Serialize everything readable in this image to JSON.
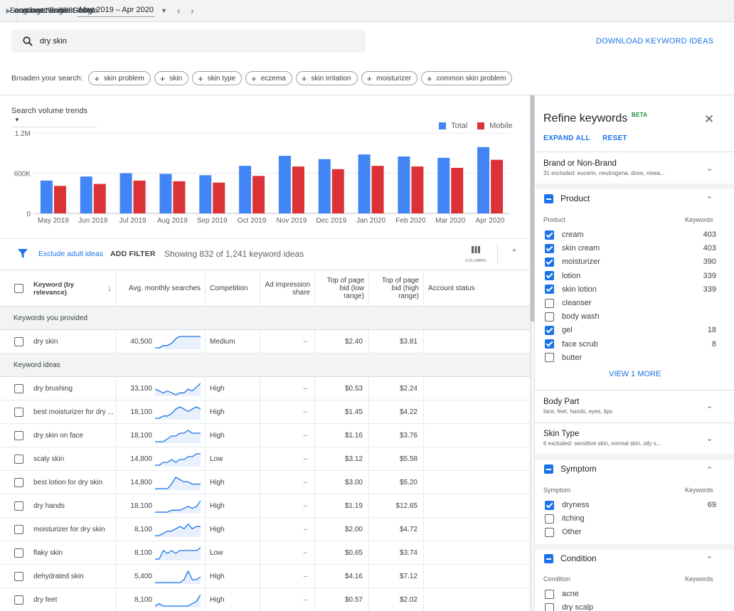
{
  "topbar": {
    "location": "Locations: United States",
    "language": "Language: English",
    "networks": "Search networks: Google",
    "range_label": "Last 12 months",
    "range_value": "May 2019 – Apr 2020"
  },
  "search": {
    "query": "dry skin",
    "download": "DOWNLOAD KEYWORD IDEAS"
  },
  "broaden": {
    "label": "Broaden your search:",
    "chips": [
      "skin problem",
      "skin",
      "skin type",
      "eczema",
      "skin irritation",
      "moisturizer",
      "common skin problem"
    ]
  },
  "trend": {
    "dropdown": "Search volume trends"
  },
  "chart_data": {
    "type": "bar",
    "categories": [
      "May 2019",
      "Jun 2019",
      "Jul 2019",
      "Aug 2019",
      "Sep 2019",
      "Oct 2019",
      "Nov 2019",
      "Dec 2019",
      "Jan 2020",
      "Feb 2020",
      "Mar 2020",
      "Apr 2020"
    ],
    "series": [
      {
        "name": "Total",
        "color": "#4285f4",
        "values": [
          490000,
          550000,
          600000,
          590000,
          570000,
          710000,
          860000,
          810000,
          880000,
          850000,
          830000,
          990000
        ]
      },
      {
        "name": "Mobile",
        "color": "#db3236",
        "values": [
          410000,
          440000,
          490000,
          480000,
          460000,
          560000,
          700000,
          660000,
          710000,
          700000,
          680000,
          800000
        ]
      }
    ],
    "yticks": [
      {
        "value": 0,
        "label": "0"
      },
      {
        "value": 600000,
        "label": "600K"
      },
      {
        "value": 1200000,
        "label": "1.2M"
      }
    ],
    "ylim": [
      0,
      1200000
    ],
    "legend": "top-right",
    "grid": true
  },
  "filterbar": {
    "exclude": "Exclude adult ideas",
    "add_filter": "ADD FILTER",
    "showing": "Showing 832 of 1,241 keyword ideas",
    "columns": "COLUMNS"
  },
  "table": {
    "headers": {
      "keyword": "Keyword (by relevance)",
      "avg": "Avg. monthly searches",
      "competition": "Competition",
      "adimp": "Ad impression share",
      "low": "Top of page bid (low range)",
      "high": "Top of page bid (high range)",
      "account": "Account status"
    },
    "section_provided": "Keywords you provided",
    "section_ideas": "Keyword ideas",
    "provided": [
      {
        "keyword": "dry skin",
        "avg": "40,500",
        "trend": [
          2,
          2,
          3,
          3,
          4,
          6,
          7,
          7,
          7,
          7,
          7,
          7
        ],
        "competition": "Medium",
        "adimp": "–",
        "low": "$2.40",
        "high": "$3.81"
      }
    ],
    "ideas": [
      {
        "keyword": "dry brushing",
        "avg": "33,100",
        "trend": [
          5,
          4,
          3,
          4,
          3,
          2,
          3,
          3,
          5,
          4,
          6,
          8
        ],
        "competition": "High",
        "adimp": "–",
        "low": "$0.53",
        "high": "$2.24"
      },
      {
        "keyword": "best moisturizer for dry ...",
        "avg": "18,100",
        "trend": [
          2,
          2,
          3,
          3,
          4,
          6,
          7,
          6,
          5,
          6,
          7,
          6
        ],
        "competition": "High",
        "adimp": "–",
        "low": "$1.45",
        "high": "$4.22"
      },
      {
        "keyword": "dry skin on face",
        "avg": "18,100",
        "trend": [
          2,
          2,
          2,
          3,
          4,
          4,
          5,
          5,
          6,
          5,
          5,
          5
        ],
        "competition": "High",
        "adimp": "–",
        "low": "$1.16",
        "high": "$3.76"
      },
      {
        "keyword": "scaly skin",
        "avg": "14,800",
        "trend": [
          2,
          2,
          3,
          3,
          4,
          3,
          4,
          4,
          5,
          5,
          6,
          6
        ],
        "competition": "Low",
        "adimp": "–",
        "low": "$3.12",
        "high": "$5.58"
      },
      {
        "keyword": "best lotion for dry skin",
        "avg": "14,800",
        "trend": [
          2,
          2,
          2,
          2,
          4,
          7,
          6,
          5,
          5,
          4,
          4,
          4
        ],
        "competition": "High",
        "adimp": "–",
        "low": "$3.00",
        "high": "$5.20"
      },
      {
        "keyword": "dry hands",
        "avg": "18,100",
        "trend": [
          2,
          2,
          2,
          2,
          3,
          3,
          3,
          4,
          5,
          4,
          5,
          8
        ],
        "competition": "High",
        "adimp": "–",
        "low": "$1.19",
        "high": "$12.65"
      },
      {
        "keyword": "moisturizer for dry skin",
        "avg": "8,100",
        "trend": [
          2,
          2,
          3,
          4,
          4,
          5,
          6,
          5,
          7,
          5,
          6,
          6
        ],
        "competition": "High",
        "adimp": "–",
        "low": "$2.00",
        "high": "$4.72"
      },
      {
        "keyword": "flaky skin",
        "avg": "8,100",
        "trend": [
          2,
          2,
          5,
          4,
          5,
          4,
          5,
          5,
          5,
          5,
          5,
          6
        ],
        "competition": "Low",
        "adimp": "–",
        "low": "$0.65",
        "high": "$3.74"
      },
      {
        "keyword": "dehydrated skin",
        "avg": "5,400",
        "trend": [
          3,
          3,
          3,
          3,
          3,
          3,
          3,
          4,
          7,
          4,
          4,
          5
        ],
        "competition": "High",
        "adimp": "–",
        "low": "$4.16",
        "high": "$7.12"
      },
      {
        "keyword": "dry feet",
        "avg": "8,100",
        "trend": [
          2,
          3,
          2,
          2,
          2,
          2,
          2,
          2,
          2,
          3,
          4,
          7
        ],
        "competition": "High",
        "adimp": "–",
        "low": "$0.57",
        "high": "$2.02"
      }
    ]
  },
  "refine": {
    "title": "Refine keywords",
    "beta": "BETA",
    "expand_all": "EXPAND ALL",
    "reset": "RESET",
    "brand": {
      "title": "Brand or Non-Brand",
      "sub": "31 excluded: eucerin, neutrogena, dove, nivea..."
    },
    "product": {
      "title": "Product",
      "col1": "Product",
      "col2": "Keywords",
      "items": [
        {
          "label": "cream",
          "checked": true,
          "count": "403"
        },
        {
          "label": "skin cream",
          "checked": true,
          "count": "403"
        },
        {
          "label": "moisturizer",
          "checked": true,
          "count": "390"
        },
        {
          "label": "lotion",
          "checked": true,
          "count": "339"
        },
        {
          "label": "skin lotion",
          "checked": true,
          "count": "339"
        },
        {
          "label": "cleanser",
          "checked": false,
          "count": ""
        },
        {
          "label": "body wash",
          "checked": false,
          "count": ""
        },
        {
          "label": "gel",
          "checked": true,
          "count": "18"
        },
        {
          "label": "face scrub",
          "checked": true,
          "count": "8"
        },
        {
          "label": "butter",
          "checked": false,
          "count": ""
        }
      ],
      "view_more": "VIEW 1 MORE"
    },
    "body_part": {
      "title": "Body Part",
      "sub": "face, feet, hands, eyes, lips"
    },
    "skin_type": {
      "title": "Skin Type",
      "sub": "6 excluded: sensitive skin, normal skin, oily s..."
    },
    "symptom": {
      "title": "Symptom",
      "col1": "Symptom",
      "col2": "Keywords",
      "items": [
        {
          "label": "dryness",
          "checked": true,
          "count": "69"
        },
        {
          "label": "itching",
          "checked": false,
          "count": ""
        },
        {
          "label": "Other",
          "checked": false,
          "count": ""
        }
      ]
    },
    "condition": {
      "title": "Condition",
      "col1": "Condition",
      "col2": "Keywords",
      "items": [
        {
          "label": "acne",
          "checked": false,
          "count": ""
        },
        {
          "label": "dry scalp",
          "checked": false,
          "count": ""
        }
      ]
    }
  }
}
